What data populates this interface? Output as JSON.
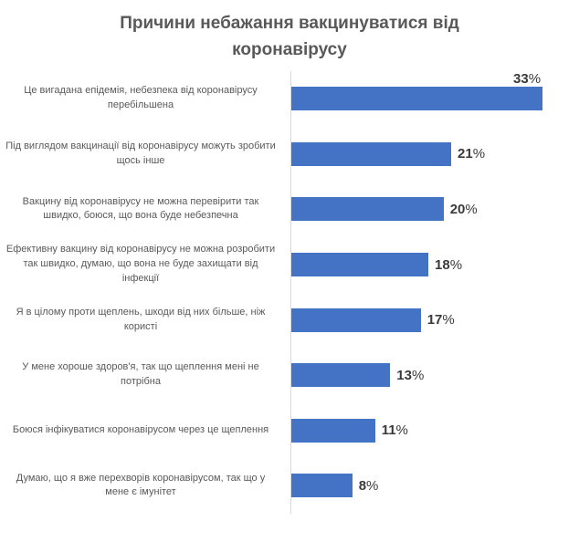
{
  "title": "Причини небажання вакцинуватися від коронавірусу",
  "colors": {
    "bar": "#4472C4",
    "axis_line": "#D9D9D9",
    "title_text": "#595959",
    "category_text": "#595959",
    "value_text": "#3A3A3A",
    "background": "#FFFFFF"
  },
  "chart_data": {
    "type": "bar",
    "orientation": "horizontal",
    "title": "Причини небажання вакцинуватися від коронавірусу",
    "unit": "%",
    "xlabel": "",
    "ylabel": "",
    "xlim": [
      0,
      38
    ],
    "grid": false,
    "legend": false,
    "data_labels": [
      "33%",
      "21%",
      "20%",
      "18%",
      "17%",
      "13%",
      "11%",
      "8%"
    ],
    "categories": [
      "Це вигадана епідемія, небезпека від коронавірусу перебільшена",
      "Під виглядом вакцинації від коронавірусу можуть зробити щось інше",
      "Вакцину від коронавірусу не можна перевірити так швидко, боюся, що вона буде небезпечна",
      "Ефективну вакцину від коронавірусу не можна розробити так швидко, думаю, що вона не буде захищати від інфекції",
      "Я в цілому проти щеплень, шкоди від них більше, ніж користі",
      "У мене хороше здоров'я, так що щеплення мені не потрібна",
      "Боюся інфікуватися коронавірусом через це щеплення",
      "Думаю, що я вже перехворів коронавірусом, так що у мене є імунітет"
    ],
    "values": [
      33,
      21,
      20,
      18,
      17,
      13,
      11,
      8
    ]
  }
}
